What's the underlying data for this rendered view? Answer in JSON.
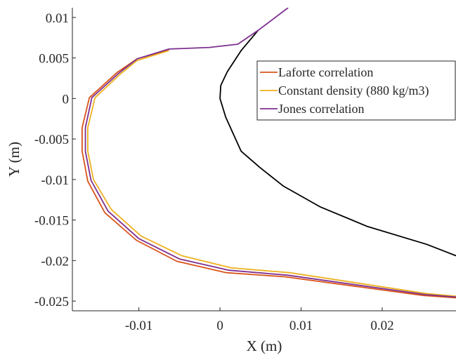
{
  "chart_data": {
    "type": "line",
    "title": "",
    "xlabel": "X (m)",
    "ylabel": "Y (m)",
    "xlim": [
      -0.0182,
      0.0291
    ],
    "ylim": [
      -0.0262,
      0.0112
    ],
    "grid": false,
    "legend_position": "upper-right",
    "xticks": [
      -0.01,
      0,
      0.01,
      0.02
    ],
    "xtick_labels": [
      "-0.01",
      "0",
      "0.01",
      "0.02"
    ],
    "yticks": [
      0.01,
      0.005,
      0,
      -0.005,
      -0.01,
      -0.015,
      -0.02,
      -0.025
    ],
    "ytick_labels": [
      "0.01",
      "0.005",
      "0",
      "-0.005",
      "-0.01",
      "-0.015",
      "-0.02",
      "-0.025"
    ],
    "series": [
      {
        "name": "Laforte correlation",
        "color": "#d95319",
        "points": [
          [
            -0.0063,
            0.006
          ],
          [
            -0.0102,
            0.0049
          ],
          [
            -0.0127,
            0.0032
          ],
          [
            -0.0161,
            0.0001
          ],
          [
            -0.017,
            -0.0036
          ],
          [
            -0.017,
            -0.0065
          ],
          [
            -0.0163,
            -0.0102
          ],
          [
            -0.0142,
            -0.0141
          ],
          [
            -0.0103,
            -0.0175
          ],
          [
            -0.0053,
            -0.0201
          ],
          [
            0.0008,
            -0.0215
          ],
          [
            0.008,
            -0.022
          ],
          [
            0.025,
            -0.0243
          ],
          [
            0.0291,
            -0.0246
          ]
        ]
      },
      {
        "name": "Constant density (880 kg/m3)",
        "color": "#edb120",
        "points": [
          [
            -0.0063,
            0.0059
          ],
          [
            -0.0102,
            0.0047
          ],
          [
            -0.0123,
            0.003
          ],
          [
            -0.0154,
            0.0001
          ],
          [
            -0.0163,
            -0.0036
          ],
          [
            -0.0163,
            -0.0065
          ],
          [
            -0.0156,
            -0.01
          ],
          [
            -0.0134,
            -0.0137
          ],
          [
            -0.0097,
            -0.017
          ],
          [
            -0.0047,
            -0.0194
          ],
          [
            0.0014,
            -0.0209
          ],
          [
            0.0086,
            -0.0215
          ],
          [
            0.0256,
            -0.0241
          ],
          [
            0.0291,
            -0.0244
          ]
        ]
      },
      {
        "name": "Jones correlation",
        "color": "#7e2f8e",
        "points": [
          [
            0.0084,
            0.0112
          ],
          [
            0.0047,
            0.0084
          ],
          [
            0.0022,
            0.0067
          ],
          [
            -0.0013,
            0.0063
          ],
          [
            -0.0063,
            0.0061
          ],
          [
            -0.0102,
            0.0049
          ],
          [
            -0.0125,
            0.0031
          ],
          [
            -0.0158,
            0.0001
          ],
          [
            -0.0166,
            -0.0036
          ],
          [
            -0.0166,
            -0.0065
          ],
          [
            -0.0159,
            -0.0101
          ],
          [
            -0.0138,
            -0.0139
          ],
          [
            -0.01,
            -0.0173
          ],
          [
            -0.005,
            -0.0198
          ],
          [
            0.0011,
            -0.0212
          ],
          [
            0.0083,
            -0.0218
          ],
          [
            0.0253,
            -0.0242
          ],
          [
            0.0291,
            -0.0245
          ]
        ]
      },
      {
        "name": "",
        "color": "#000000",
        "points": [
          [
            0.0047,
            0.0084
          ],
          [
            0.0026,
            0.0059
          ],
          [
            0.0009,
            0.0033
          ],
          [
            0.0001,
            0.0016
          ],
          [
            0.0,
            0.0
          ],
          [
            0.0007,
            -0.0023
          ],
          [
            0.0026,
            -0.0065
          ],
          [
            0.0049,
            -0.0085
          ],
          [
            0.0078,
            -0.0108
          ],
          [
            0.0124,
            -0.0134
          ],
          [
            0.0182,
            -0.0158
          ],
          [
            0.0255,
            -0.018
          ],
          [
            0.0291,
            -0.0194
          ]
        ]
      }
    ]
  }
}
